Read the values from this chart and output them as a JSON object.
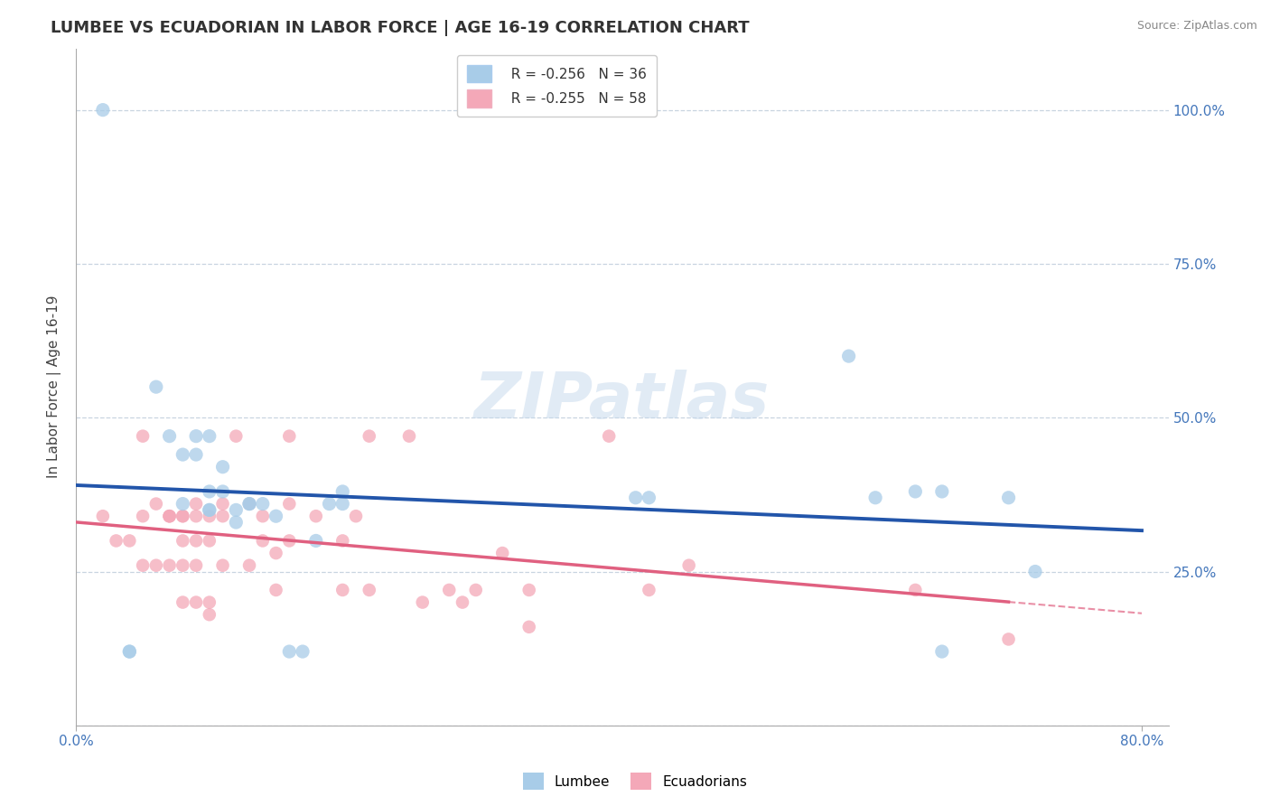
{
  "title": "LUMBEE VS ECUADORIAN IN LABOR FORCE | AGE 16-19 CORRELATION CHART",
  "source": "Source: ZipAtlas.com",
  "ylabel": "In Labor Force | Age 16-19",
  "watermark": "ZIPatlas",
  "lumbee_R": -0.256,
  "lumbee_N": 36,
  "ecuadorian_R": -0.255,
  "ecuadorian_N": 58,
  "lumbee_color": "#a8cce8",
  "ecuadorian_color": "#f4a8b8",
  "lumbee_line_color": "#2255aa",
  "ecuadorian_line_color": "#e06080",
  "background_color": "#ffffff",
  "grid_color": "#c8d4e0",
  "lumbee_x": [
    0.02,
    0.06,
    0.07,
    0.08,
    0.08,
    0.09,
    0.09,
    0.1,
    0.1,
    0.1,
    0.1,
    0.11,
    0.11,
    0.12,
    0.12,
    0.13,
    0.13,
    0.14,
    0.15,
    0.16,
    0.17,
    0.18,
    0.19,
    0.2,
    0.2,
    0.42,
    0.43,
    0.58,
    0.6,
    0.63,
    0.65,
    0.65,
    0.7,
    0.72,
    0.04,
    0.04
  ],
  "lumbee_y": [
    1.0,
    0.55,
    0.47,
    0.44,
    0.36,
    0.47,
    0.44,
    0.35,
    0.35,
    0.38,
    0.47,
    0.38,
    0.42,
    0.33,
    0.35,
    0.36,
    0.36,
    0.36,
    0.34,
    0.12,
    0.12,
    0.3,
    0.36,
    0.36,
    0.38,
    0.37,
    0.37,
    0.6,
    0.37,
    0.38,
    0.38,
    0.12,
    0.37,
    0.25,
    0.12,
    0.12
  ],
  "ecuadorian_x": [
    0.02,
    0.03,
    0.04,
    0.05,
    0.05,
    0.05,
    0.06,
    0.06,
    0.07,
    0.07,
    0.07,
    0.07,
    0.08,
    0.08,
    0.08,
    0.08,
    0.08,
    0.09,
    0.09,
    0.09,
    0.09,
    0.09,
    0.1,
    0.1,
    0.1,
    0.1,
    0.11,
    0.11,
    0.11,
    0.12,
    0.13,
    0.13,
    0.14,
    0.14,
    0.15,
    0.15,
    0.16,
    0.16,
    0.16,
    0.18,
    0.2,
    0.2,
    0.21,
    0.22,
    0.22,
    0.25,
    0.26,
    0.28,
    0.29,
    0.3,
    0.32,
    0.34,
    0.34,
    0.4,
    0.43,
    0.46,
    0.63,
    0.7
  ],
  "ecuadorian_y": [
    0.34,
    0.3,
    0.3,
    0.47,
    0.34,
    0.26,
    0.26,
    0.36,
    0.34,
    0.34,
    0.34,
    0.26,
    0.34,
    0.34,
    0.3,
    0.26,
    0.2,
    0.36,
    0.34,
    0.3,
    0.26,
    0.2,
    0.3,
    0.34,
    0.2,
    0.18,
    0.36,
    0.34,
    0.26,
    0.47,
    0.36,
    0.26,
    0.34,
    0.3,
    0.28,
    0.22,
    0.47,
    0.36,
    0.3,
    0.34,
    0.3,
    0.22,
    0.34,
    0.47,
    0.22,
    0.47,
    0.2,
    0.22,
    0.2,
    0.22,
    0.28,
    0.22,
    0.16,
    0.47,
    0.22,
    0.26,
    0.22,
    0.14
  ],
  "xlim": [
    0.0,
    0.82
  ],
  "ylim": [
    0.0,
    1.1
  ],
  "ytick_vals": [
    0.0,
    0.25,
    0.5,
    0.75,
    1.0
  ],
  "ytick_labels_right": [
    "",
    "25.0%",
    "50.0%",
    "75.0%",
    "100.0%"
  ],
  "xtick_vals": [
    0.0,
    0.8
  ],
  "xtick_labels": [
    "0.0%",
    "80.0%"
  ]
}
